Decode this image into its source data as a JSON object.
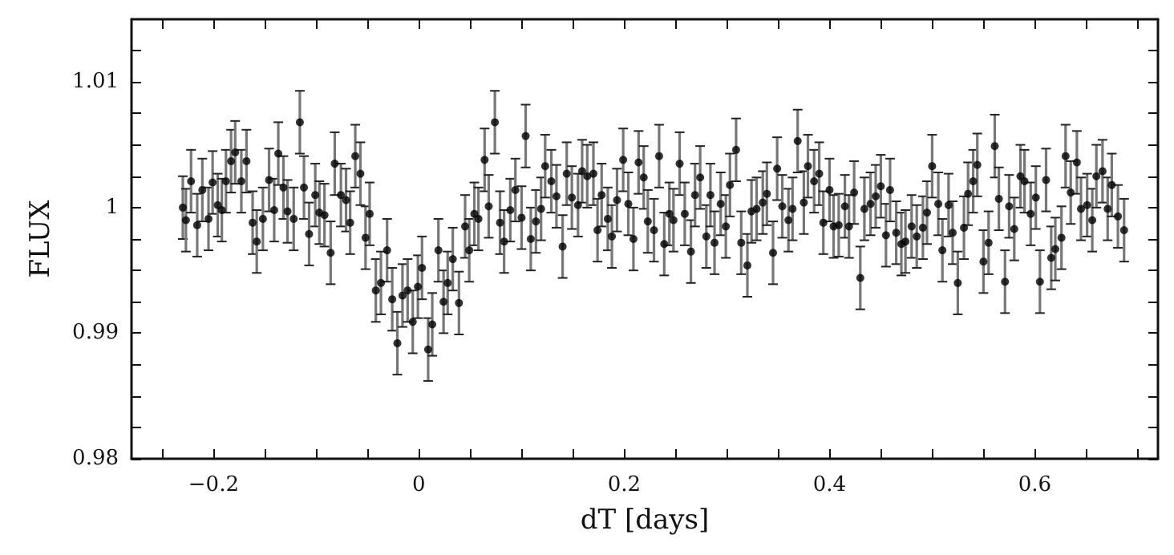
{
  "chart_data": {
    "type": "scatter",
    "xlabel": "dT [days]",
    "ylabel": "FLUX",
    "xlim": [
      -0.28,
      0.72
    ],
    "ylim": [
      0.98,
      1.015
    ],
    "xticks": [
      {
        "value": -0.25,
        "label": null
      },
      {
        "value": -0.2,
        "label": "−0.2"
      },
      {
        "value": -0.15,
        "label": null
      },
      {
        "value": -0.1,
        "label": null
      },
      {
        "value": -0.05,
        "label": null
      },
      0,
      {
        "value": 0.05,
        "label": null
      },
      {
        "value": 0.1,
        "label": null
      },
      {
        "value": 0.15,
        "label": null
      },
      0.2,
      {
        "value": 0.25,
        "label": null
      },
      {
        "value": 0.3,
        "label": null
      },
      {
        "value": 0.35,
        "label": null
      },
      0.4,
      {
        "value": 0.45,
        "label": null
      },
      {
        "value": 0.5,
        "label": null
      },
      {
        "value": 0.55,
        "label": null
      },
      0.6,
      {
        "value": 0.65,
        "label": null
      },
      {
        "value": 0.7,
        "label": null
      }
    ],
    "yticks": [
      0.98,
      {
        "value": 0.9825,
        "label": null
      },
      {
        "value": 0.985,
        "label": null
      },
      {
        "value": 0.9875,
        "label": null
      },
      0.99,
      {
        "value": 0.9925,
        "label": null
      },
      {
        "value": 0.995,
        "label": null
      },
      {
        "value": 0.9975,
        "label": null
      },
      1,
      {
        "value": 1.0025,
        "label": null
      },
      {
        "value": 1.005,
        "label": null
      },
      {
        "value": 1.0075,
        "label": null
      },
      1.01,
      {
        "value": 1.0125,
        "label": null
      }
    ],
    "grid": false,
    "marker": "circle",
    "series": [
      {
        "color": "#000000",
        "x": [
          -0.23,
          -0.227,
          -0.222,
          -0.216,
          -0.211,
          -0.205,
          -0.201,
          -0.196,
          -0.192,
          -0.188,
          -0.183,
          -0.179,
          -0.173,
          -0.168,
          -0.162,
          -0.158,
          -0.152,
          -0.146,
          -0.141,
          -0.137,
          -0.132,
          -0.128,
          -0.122,
          -0.116,
          -0.112,
          -0.107,
          -0.101,
          -0.097,
          -0.092,
          -0.086,
          -0.082,
          -0.076,
          -0.071,
          -0.067,
          -0.062,
          -0.057,
          -0.052,
          -0.048,
          -0.042,
          -0.037,
          -0.031,
          -0.026,
          -0.021,
          -0.016,
          -0.011,
          -0.006,
          -0.001,
          0.003,
          0.009,
          0.013,
          0.019,
          0.024,
          0.028,
          0.033,
          0.039,
          0.045,
          0.049,
          0.054,
          0.058,
          0.064,
          0.068,
          0.074,
          0.079,
          0.083,
          0.089,
          0.094,
          0.1,
          0.104,
          0.109,
          0.114,
          0.119,
          0.123,
          0.129,
          0.134,
          0.14,
          0.144,
          0.149,
          0.155,
          0.159,
          0.164,
          0.17,
          0.174,
          0.178,
          0.184,
          0.188,
          0.193,
          0.199,
          0.204,
          0.209,
          0.214,
          0.219,
          0.223,
          0.229,
          0.234,
          0.239,
          0.244,
          0.248,
          0.254,
          0.259,
          0.265,
          0.269,
          0.274,
          0.28,
          0.284,
          0.288,
          0.294,
          0.299,
          0.303,
          0.309,
          0.314,
          0.32,
          0.324,
          0.329,
          0.335,
          0.339,
          0.345,
          0.349,
          0.354,
          0.36,
          0.364,
          0.369,
          0.375,
          0.379,
          0.385,
          0.39,
          0.394,
          0.4,
          0.404,
          0.409,
          0.415,
          0.419,
          0.424,
          0.43,
          0.434,
          0.44,
          0.445,
          0.45,
          0.455,
          0.459,
          0.465,
          0.47,
          0.474,
          0.48,
          0.485,
          0.491,
          0.495,
          0.5,
          0.506,
          0.51,
          0.516,
          0.52,
          0.525,
          0.531,
          0.535,
          0.54,
          0.544,
          0.55,
          0.555,
          0.561,
          0.565,
          0.571,
          0.575,
          0.58,
          0.586,
          0.59,
          0.596,
          0.601,
          0.605,
          0.611,
          0.616,
          0.62,
          0.626,
          0.63,
          0.635,
          0.641,
          0.645,
          0.651,
          0.656,
          0.66,
          0.666,
          0.671,
          0.675,
          0.681,
          0.687
        ],
        "values": [
          1.0,
          0.999,
          1.0021,
          0.9986,
          1.0014,
          0.9991,
          1.002,
          1.0002,
          0.9998,
          1.0021,
          1.0037,
          1.0044,
          1.0021,
          1.0037,
          0.9988,
          0.9973,
          0.9991,
          1.0022,
          0.9998,
          1.0043,
          1.0016,
          0.9997,
          0.9991,
          1.0068,
          1.0016,
          0.9979,
          1.001,
          0.9996,
          0.9994,
          0.9964,
          1.0035,
          1.001,
          1.0006,
          0.9988,
          1.0041,
          1.0027,
          0.9976,
          0.9995,
          0.9934,
          0.994,
          0.9966,
          0.9927,
          0.9892,
          0.993,
          0.9934,
          0.9909,
          0.9937,
          0.9952,
          0.9887,
          0.9907,
          0.9966,
          0.9925,
          0.994,
          0.9959,
          0.9924,
          0.9985,
          0.9966,
          0.9995,
          0.9991,
          1.0038,
          1.0001,
          1.0068,
          0.9988,
          0.9973,
          0.9998,
          1.0014,
          0.9992,
          1.0057,
          0.9975,
          0.9989,
          0.9999,
          1.0033,
          1.0021,
          1.0009,
          0.9969,
          1.0027,
          1.0008,
          1.0002,
          1.0029,
          1.0025,
          1.0027,
          0.9982,
          1.001,
          0.9991,
          0.9977,
          1.0006,
          1.0038,
          1.0003,
          0.9975,
          1.0036,
          1.0024,
          0.9989,
          0.9982,
          1.0041,
          0.9971,
          0.9995,
          0.999,
          1.0035,
          0.9995,
          0.9965,
          1.001,
          1.0024,
          0.9977,
          1.001,
          0.9972,
          1.0003,
          0.9985,
          1.0018,
          1.0046,
          0.9972,
          0.9954,
          0.9997,
          0.9999,
          1.0004,
          1.0011,
          0.9964,
          1.0031,
          1.0001,
          0.999,
          0.9999,
          1.0053,
          1.0004,
          1.0033,
          1.0021,
          1.0027,
          0.9988,
          1.0014,
          0.9985,
          0.9986,
          1.0001,
          0.9985,
          1.0012,
          0.9944,
          0.9999,
          1.0003,
          1.0009,
          1.0017,
          0.9978,
          1.0014,
          0.998,
          0.9971,
          0.9973,
          0.9985,
          0.9977,
          0.9984,
          0.9996,
          1.0033,
          1.0003,
          0.9966,
          1.0002,
          0.998,
          0.994,
          0.9984,
          1.0011,
          1.0021,
          1.0034,
          0.9957,
          0.9972,
          1.0049,
          1.0007,
          0.9941,
          1.0001,
          0.9983,
          1.0025,
          1.0021,
          0.9995,
          1.0008,
          0.9941,
          1.0022,
          0.996,
          0.9967,
          0.9976,
          1.0041,
          1.0012,
          1.0036,
          0.9999,
          1.0002,
          0.999,
          1.0025,
          1.0029,
          0.9999,
          1.0018,
          0.9993,
          0.9982
        ],
        "errors": [
          0.0025,
          0.0025,
          0.0025,
          0.0025,
          0.0025,
          0.0025,
          0.0025,
          0.0025,
          0.0025,
          0.0025,
          0.0025,
          0.0025,
          0.0025,
          0.0025,
          0.0025,
          0.0025,
          0.0025,
          0.0025,
          0.0025,
          0.0025,
          0.0025,
          0.0025,
          0.0025,
          0.0025,
          0.0025,
          0.0025,
          0.0025,
          0.0025,
          0.0025,
          0.0025,
          0.0025,
          0.0025,
          0.0025,
          0.0025,
          0.0025,
          0.0025,
          0.0025,
          0.0025,
          0.0025,
          0.0025,
          0.0025,
          0.0025,
          0.0025,
          0.0025,
          0.0025,
          0.0025,
          0.0025,
          0.0025,
          0.0025,
          0.0025,
          0.0025,
          0.0025,
          0.0025,
          0.0025,
          0.0025,
          0.0025,
          0.0025,
          0.0025,
          0.0025,
          0.0025,
          0.0025,
          0.0025,
          0.0025,
          0.0025,
          0.0025,
          0.0025,
          0.0025,
          0.0025,
          0.0025,
          0.0025,
          0.0025,
          0.0025,
          0.0025,
          0.0025,
          0.0025,
          0.0025,
          0.0025,
          0.0025,
          0.0025,
          0.0025,
          0.0025,
          0.0025,
          0.0025,
          0.0025,
          0.0025,
          0.0025,
          0.0025,
          0.0025,
          0.0025,
          0.0025,
          0.0025,
          0.0025,
          0.0025,
          0.0025,
          0.0025,
          0.0025,
          0.0025,
          0.0025,
          0.0025,
          0.0025,
          0.0025,
          0.0025,
          0.0025,
          0.0025,
          0.0025,
          0.0025,
          0.0025,
          0.0025,
          0.0025,
          0.0025,
          0.0025,
          0.0025,
          0.0025,
          0.0025,
          0.0025,
          0.0025,
          0.0025,
          0.0025,
          0.0025,
          0.0025,
          0.0025,
          0.0025,
          0.0025,
          0.0025,
          0.0025,
          0.0025,
          0.0025,
          0.0025,
          0.0025,
          0.0025,
          0.0025,
          0.0025,
          0.0025,
          0.0025,
          0.0025,
          0.0025,
          0.0025,
          0.0025,
          0.0025,
          0.0025,
          0.0025,
          0.0025,
          0.0025,
          0.0025,
          0.0025,
          0.0025,
          0.0025,
          0.0025,
          0.0025,
          0.0025,
          0.0025,
          0.0025,
          0.0025,
          0.0025,
          0.0025,
          0.0025,
          0.0025,
          0.0025,
          0.0025,
          0.0025,
          0.0025,
          0.0025,
          0.0025,
          0.0025,
          0.0025,
          0.0025,
          0.0025,
          0.0025,
          0.0025,
          0.0025,
          0.0025,
          0.0025,
          0.0025,
          0.0025,
          0.0025,
          0.0025,
          0.0025,
          0.0025,
          0.0025,
          0.0025,
          0.0025,
          0.0025,
          0.0025,
          0.0025
        ]
      }
    ]
  }
}
